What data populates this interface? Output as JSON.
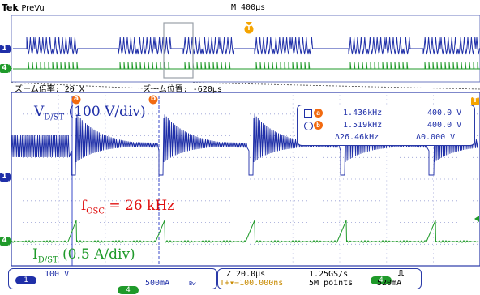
{
  "header": {
    "brand": "Tek",
    "mode": "PreVu",
    "timebase": "M 400µs"
  },
  "zoom": {
    "factor_label": "ズーム倍率:",
    "factor_value": "20 X",
    "position_label": "ズーム位置:",
    "position_value": "-620µs"
  },
  "markers": {
    "trigger": "T",
    "cursor_a": "a",
    "cursor_b": "b",
    "ch1": "1",
    "ch4": "4"
  },
  "annotations": {
    "v_label": "V",
    "v_sub": "D/ST",
    "v_scale": "(100 V/div)",
    "f_label": "f",
    "f_sub": "OSC",
    "f_value": "= 26 kHz",
    "i_label": "I",
    "i_sub": "D/ST",
    "i_scale": "(0.5 A/div)"
  },
  "cursor_readout": {
    "a_freq": "1.436kHz",
    "a_volt": "400.0 V",
    "b_freq": "1.519kHz",
    "b_volt": "400.0 V",
    "delta_freq": "Δ26.46kHz",
    "delta_volt": "Δ0.000 V"
  },
  "status_bar": {
    "ch1_badge": "1",
    "ch1_scale": "100 V",
    "ch4_badge": "4",
    "ch4_scale": "500mA",
    "ch4_bw": "Bw",
    "horiz_scale": "Z 20.0µs",
    "trigger_delay": "T+▾−100.000ns",
    "sample_rate": "1.25GS/s",
    "record_length": "5M points",
    "trig_badge": "4",
    "trig_slope": "⎍",
    "trig_level": "520mA"
  },
  "colors": {
    "ch1": "#1f2fa8",
    "ch4": "#1f9a2a",
    "annotation_red": "#e01010",
    "cursor_orange": "#f26a10",
    "trigger": "#f5a400",
    "grid": "#7d86c9"
  }
}
